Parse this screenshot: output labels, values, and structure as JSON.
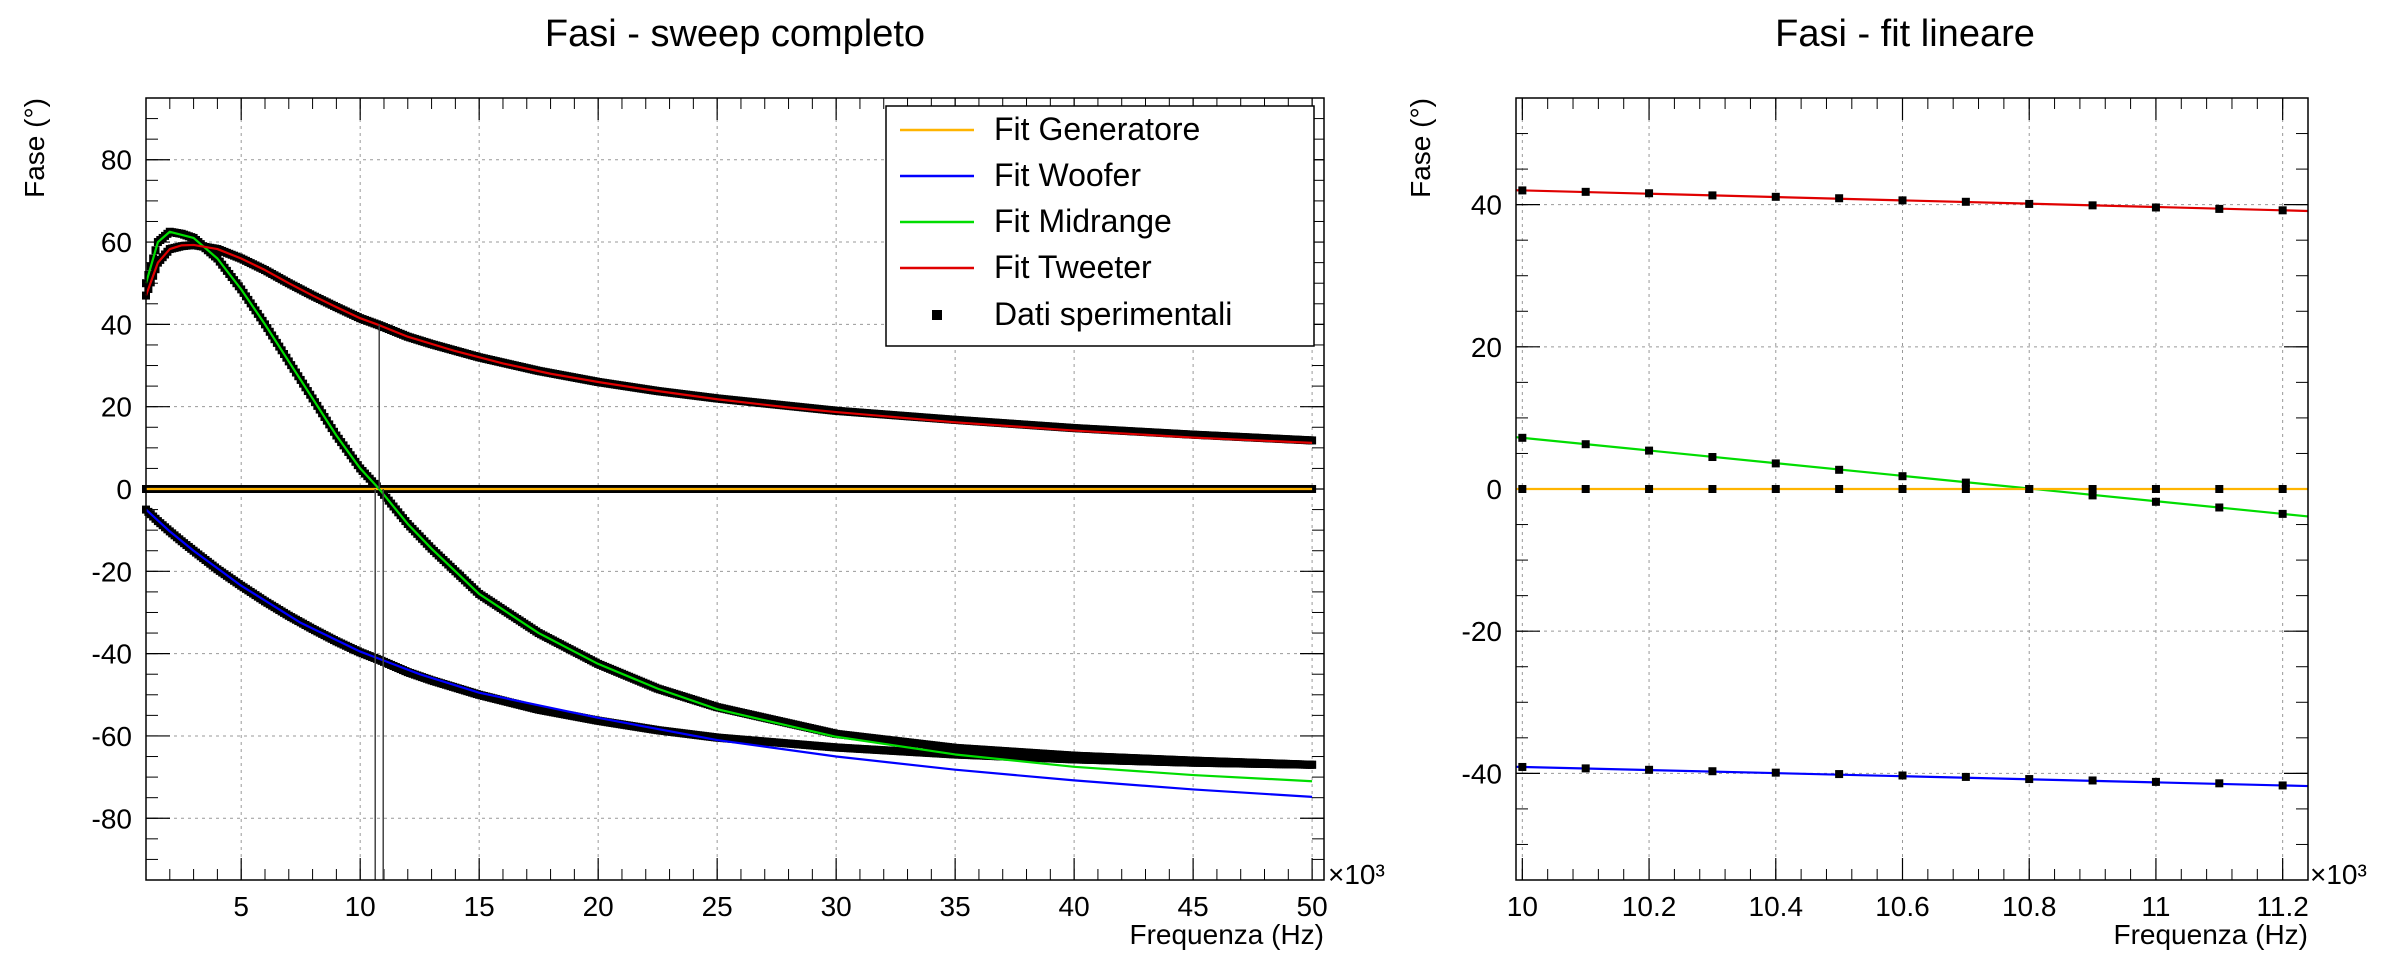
{
  "chart_data": [
    {
      "type": "line",
      "title": "Fasi - sweep completo",
      "xlabel": "Frequenza (Hz)",
      "ylabel": "Fase (°)",
      "x_multiplier": "×10³",
      "x_unit_scale": 1000,
      "xlim": [
        1000,
        50500
      ],
      "ylim": [
        -95,
        95
      ],
      "xticks": [
        5,
        10,
        15,
        20,
        25,
        30,
        35,
        40,
        45,
        50
      ],
      "yticks": [
        -80,
        -60,
        -40,
        -20,
        0,
        20,
        40,
        60,
        80
      ],
      "grid": true,
      "legend_position": "top-right",
      "legend": [
        {
          "label": "Fit Generatore",
          "color": "#ffb400",
          "marker": "line"
        },
        {
          "label": "Fit Woofer",
          "color": "#0000ff",
          "marker": "line"
        },
        {
          "label": "Fit Midrange",
          "color": "#00dd00",
          "marker": "line"
        },
        {
          "label": "Fit Tweeter",
          "color": "#e00000",
          "marker": "line"
        },
        {
          "label": "Dati sperimentali",
          "color": "#000000",
          "marker": "square"
        }
      ],
      "series": [
        {
          "name": "Fit Generatore",
          "color": "#ffb400",
          "x": [
            1000,
            10000,
            20000,
            30000,
            40000,
            50000
          ],
          "y": [
            0,
            0,
            0,
            0,
            0,
            0
          ]
        },
        {
          "name": "Fit Woofer",
          "color": "#0000ff",
          "x": [
            1000,
            2000,
            3000,
            5000,
            7500,
            10000,
            12500,
            15000,
            20000,
            25000,
            30000,
            35000,
            40000,
            45000,
            50000
          ],
          "y": [
            -5,
            -10.3,
            -15,
            -23.5,
            -32.5,
            -39.5,
            -45,
            -49.5,
            -55.6,
            -61,
            -65,
            -68.2,
            -70.8,
            -73,
            -74.8
          ]
        },
        {
          "name": "Fit Midrange",
          "color": "#00dd00",
          "x": [
            1000,
            1500,
            2000,
            3000,
            4000,
            5000,
            6000,
            7000,
            8000,
            9000,
            10000,
            10800,
            12000,
            13000,
            15000,
            17500,
            20000,
            22500,
            25000,
            30000,
            35000,
            40000,
            45000,
            50000
          ],
          "y": [
            50,
            60,
            62.5,
            61,
            56,
            48.5,
            40,
            31,
            22,
            13,
            5,
            0,
            -8.5,
            -14.5,
            -25.5,
            -35,
            -42.5,
            -48.5,
            -53.5,
            -60.2,
            -64.5,
            -67.5,
            -69.5,
            -71
          ]
        },
        {
          "name": "Fit Tweeter",
          "color": "#e00000",
          "x": [
            1000,
            1500,
            2000,
            2500,
            3000,
            4000,
            5000,
            6000,
            7000,
            8000,
            9000,
            10000,
            10800,
            12000,
            14000,
            16000,
            18000,
            20000,
            22000,
            25000,
            28000,
            30000,
            35000,
            40000,
            45000,
            50000
          ],
          "y": [
            47,
            55,
            58.3,
            59.2,
            59.3,
            58.3,
            56,
            53.2,
            50,
            47,
            44.2,
            41.5,
            39.8,
            37,
            33.5,
            30.5,
            28,
            26,
            24.2,
            21.8,
            19.8,
            18.7,
            16.2,
            14.2,
            12.5,
            11.2
          ]
        },
        {
          "name": "Dati sperimentali",
          "color": "#000000",
          "marker": "square",
          "x": [
            1000,
            1500,
            2000,
            2500,
            3000,
            4000,
            5000,
            6000,
            7000,
            8000,
            9000,
            10000,
            10800,
            12000,
            13000,
            15000,
            17500,
            20000,
            22500,
            25000,
            30000,
            35000,
            40000,
            45000,
            50000
          ],
          "y_woofer": [
            -5,
            -7.8,
            -10.3,
            -12.7,
            -15,
            -19.5,
            -23.5,
            -27.3,
            -30.8,
            -34,
            -37,
            -39.7,
            -41.5,
            -44.5,
            -46.5,
            -50,
            -53.6,
            -56.3,
            -58.6,
            -60.4,
            -62.8,
            -64.5,
            -65.7,
            -66.5,
            -67
          ],
          "y_midrange": [
            50,
            60,
            62.5,
            62,
            61,
            56,
            48.5,
            40,
            31,
            22,
            13,
            5,
            0,
            -8.5,
            -14.5,
            -25.5,
            -35,
            -42.5,
            -48.5,
            -53,
            -59.5,
            -62.9,
            -64.8,
            -66,
            -67
          ],
          "y_tweeter": [
            47,
            55,
            58.3,
            59,
            59.3,
            58.3,
            56,
            53.2,
            50,
            47,
            44.2,
            41.5,
            39.8,
            37,
            35.2,
            32,
            28.7,
            26,
            23.8,
            22,
            19,
            16.8,
            14.8,
            13.2,
            11.8
          ],
          "y_generatore": [
            0,
            0,
            0,
            0,
            0,
            0,
            0,
            0,
            0,
            0,
            0,
            0,
            0,
            0,
            0,
            0,
            0,
            0,
            0,
            0,
            0,
            0,
            0,
            0,
            0
          ]
        }
      ]
    },
    {
      "type": "line",
      "title": "Fasi - fit lineare",
      "xlabel": "Frequenza (Hz)",
      "ylabel": "Fase (°)",
      "x_multiplier": "×10³",
      "x_unit_scale": 1000,
      "xlim": [
        9990,
        11240
      ],
      "ylim": [
        -55,
        55
      ],
      "xticks": [
        10,
        10.2,
        10.4,
        10.6,
        10.8,
        11,
        11.2
      ],
      "xticklabels": [
        "10",
        "10.2",
        "10.4",
        "10.6",
        "10.8",
        "11",
        "11.2"
      ],
      "yticks": [
        -40,
        -20,
        0,
        20,
        40
      ],
      "grid": true,
      "series": [
        {
          "name": "Tweeter",
          "color": "#e00000",
          "x": [
            10000,
            10100,
            10200,
            10300,
            10400,
            10500,
            10600,
            10700,
            10800,
            10900,
            11000,
            11100,
            11200
          ],
          "y": [
            42,
            41.8,
            41.6,
            41.3,
            41.1,
            40.9,
            40.6,
            40.4,
            40.1,
            39.9,
            39.6,
            39.4,
            39.2
          ]
        },
        {
          "name": "Midrange",
          "color": "#00dd00",
          "x": [
            10000,
            10100,
            10200,
            10300,
            10400,
            10500,
            10600,
            10700,
            10800,
            10900,
            11000,
            11100,
            11200
          ],
          "y": [
            7.2,
            6.3,
            5.4,
            4.5,
            3.6,
            2.7,
            1.8,
            0.9,
            0,
            -0.9,
            -1.8,
            -2.6,
            -3.5
          ]
        },
        {
          "name": "Generatore",
          "color": "#ffb400",
          "x": [
            10000,
            10100,
            10200,
            10300,
            10400,
            10500,
            10600,
            10700,
            10800,
            10900,
            11000,
            11100,
            11200
          ],
          "y": [
            0,
            0,
            0,
            0,
            0,
            0,
            0,
            0,
            0,
            0,
            0,
            0,
            0
          ]
        },
        {
          "name": "Woofer",
          "color": "#0000ff",
          "x": [
            10000,
            10100,
            10200,
            10300,
            10400,
            10500,
            10600,
            10700,
            10800,
            10900,
            11000,
            11100,
            11200
          ],
          "y": [
            -39.1,
            -39.3,
            -39.5,
            -39.7,
            -39.9,
            -40.1,
            -40.3,
            -40.5,
            -40.8,
            -41,
            -41.2,
            -41.4,
            -41.7
          ]
        }
      ]
    }
  ]
}
